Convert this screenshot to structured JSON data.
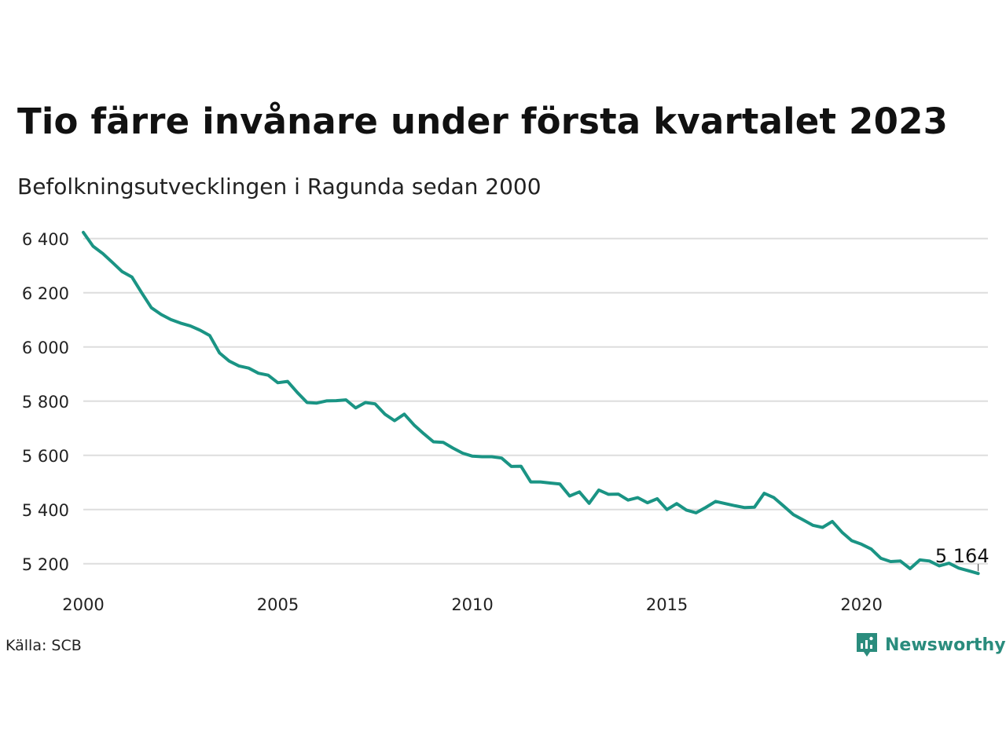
{
  "title": "Tio färre invånare under första kvartalet 2023",
  "subtitle": "Befolkningsutvecklingen i Ragunda sedan 2000",
  "source": "Källa: SCB",
  "brand": {
    "name": "Newsworthy",
    "icon": "newsworthy-logo-icon"
  },
  "colors": {
    "line": "#1a9484",
    "grid": "#dddddd",
    "brand": "#2a8c7d"
  },
  "chart_data": {
    "type": "line",
    "title": "Tio färre invånare under första kvartalet 2023",
    "subtitle": "Befolkningsutvecklingen i Ragunda sedan 2000",
    "xlabel": "",
    "ylabel": "",
    "x_ticks": [
      "2000",
      "2005",
      "2010",
      "2015",
      "2020"
    ],
    "y_ticks": [
      "5 200",
      "5 400",
      "5 600",
      "5 800",
      "6 000",
      "6 200",
      "6 400"
    ],
    "xlim": [
      2000.0,
      2023.25
    ],
    "ylim": [
      5150,
      6440
    ],
    "grid": true,
    "legend": "none",
    "end_label": "5 164",
    "series": [
      {
        "x": [
          "2000Q1",
          "2000Q2",
          "2000Q3",
          "2000Q4",
          "2001Q1",
          "2001Q2",
          "2001Q3",
          "2001Q4",
          "2002Q1",
          "2002Q2",
          "2002Q3",
          "2002Q4",
          "2003Q1",
          "2003Q2",
          "2003Q3",
          "2003Q4",
          "2004Q1",
          "2004Q2",
          "2004Q3",
          "2004Q4",
          "2005Q1",
          "2005Q2",
          "2005Q3",
          "2005Q4",
          "2006Q1",
          "2006Q2",
          "2006Q3",
          "2006Q4",
          "2007Q1",
          "2007Q2",
          "2007Q3",
          "2007Q4",
          "2008Q1",
          "2008Q2",
          "2008Q3",
          "2008Q4",
          "2009Q1",
          "2009Q2",
          "2009Q3",
          "2009Q4",
          "2010Q1",
          "2010Q2",
          "2010Q3",
          "2010Q4",
          "2011Q1",
          "2011Q2",
          "2011Q3",
          "2011Q4",
          "2012Q1",
          "2012Q2",
          "2012Q3",
          "2012Q4",
          "2013Q1",
          "2013Q2",
          "2013Q3",
          "2013Q4",
          "2014Q1",
          "2014Q2",
          "2014Q3",
          "2014Q4",
          "2015Q1",
          "2015Q2",
          "2015Q3",
          "2015Q4",
          "2016Q1",
          "2016Q2",
          "2016Q3",
          "2016Q4",
          "2017Q1",
          "2017Q2",
          "2017Q3",
          "2017Q4",
          "2018Q1",
          "2018Q2",
          "2018Q3",
          "2018Q4",
          "2019Q1",
          "2019Q2",
          "2019Q3",
          "2019Q4",
          "2020Q1",
          "2020Q2",
          "2020Q3",
          "2020Q4",
          "2021Q1",
          "2021Q2",
          "2021Q3",
          "2021Q4",
          "2022Q1",
          "2022Q2",
          "2022Q3",
          "2022Q4",
          "2023Q1"
        ],
        "values": [
          6423,
          6372,
          6345,
          6312,
          6278,
          6258,
          6200,
          6145,
          6120,
          6101,
          6088,
          6078,
          6062,
          6042,
          5978,
          5948,
          5930,
          5922,
          5903,
          5896,
          5868,
          5873,
          5832,
          5795,
          5793,
          5801,
          5802,
          5805,
          5775,
          5795,
          5790,
          5752,
          5728,
          5752,
          5712,
          5680,
          5650,
          5648,
          5627,
          5608,
          5597,
          5595,
          5595,
          5590,
          5559,
          5560,
          5502,
          5502,
          5498,
          5494,
          5450,
          5465,
          5423,
          5472,
          5456,
          5457,
          5435,
          5444,
          5425,
          5440,
          5400,
          5422,
          5398,
          5388,
          5408,
          5430,
          5422,
          5414,
          5407,
          5409,
          5460,
          5444,
          5413,
          5381,
          5362,
          5342,
          5334,
          5356,
          5316,
          5285,
          5272,
          5254,
          5220,
          5208,
          5210,
          5182,
          5214,
          5210,
          5192,
          5202,
          5184,
          5174,
          5164
        ]
      }
    ]
  }
}
